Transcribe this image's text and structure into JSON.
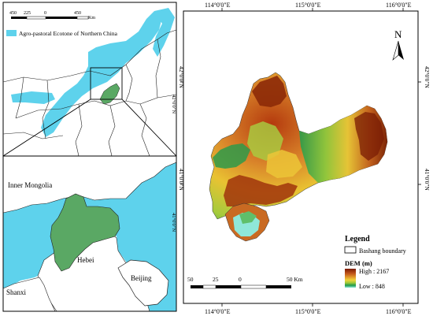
{
  "overview_map": {
    "scale_bar": {
      "ticks": [
        "450",
        "225",
        "0",
        "450"
      ],
      "unit": "Km"
    },
    "legend_label": "Agro-pastoral Ecotone of Northern China",
    "lat_label": "42°0'0\"N"
  },
  "inset_map": {
    "labels": {
      "inner_mongolia": "Inner Mongolia",
      "hebei": "Hebei",
      "beijing": "Beijing",
      "shanxi": "Shanxi"
    },
    "lat_label": "41°0'0\"N"
  },
  "main_map": {
    "north_arrow_label": "N",
    "top_ticks": [
      "114°0'0\"E",
      "115°0'0\"E",
      "116°0'0\"E"
    ],
    "bottom_ticks": [
      "114°0'0\"E",
      "115°0'0\"E",
      "116°0'0\"E"
    ],
    "right_ticks": [
      "42°0'0\"N",
      "41°0'0\"N"
    ],
    "left_ticks": [
      "42°0'0\"N",
      "41°0'0\"N"
    ],
    "scale_bar": {
      "ticks": [
        "50",
        "25",
        "0",
        "50 Km"
      ]
    },
    "legend": {
      "title": "Legend",
      "boundary_label": "Bashang boundary",
      "dem_title": "DEM (m)",
      "high_label": "High : 2167",
      "low_label": "Low : 848",
      "dem_high_value": 2167,
      "dem_low_value": 848
    },
    "colors": {
      "dem_ramp": [
        "#7a1a00",
        "#c0541b",
        "#e39a2b",
        "#f0d43a",
        "#9cc83a",
        "#1e9a4a",
        "#8fe7d9"
      ],
      "ecotone": "#5ed2ec",
      "study_area": "#5aa864"
    }
  }
}
